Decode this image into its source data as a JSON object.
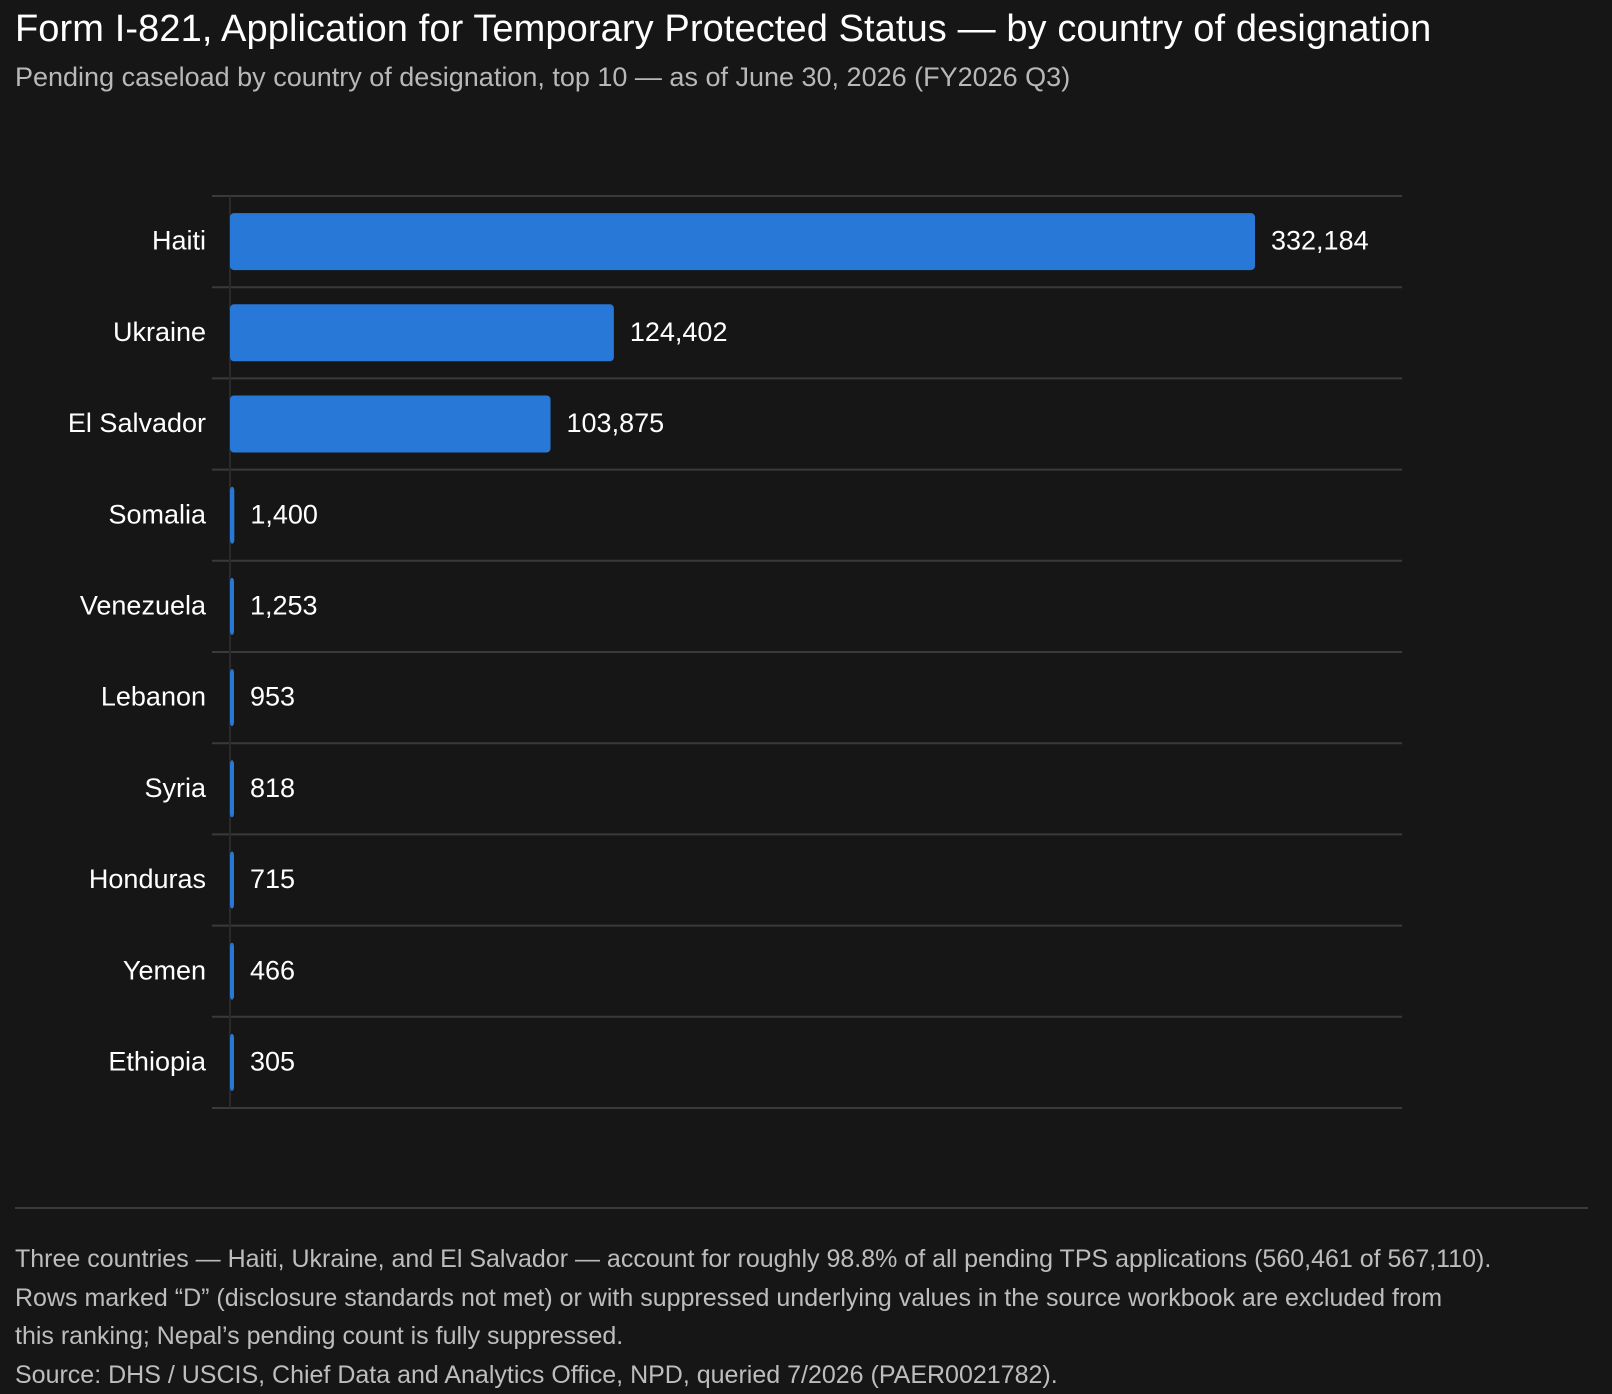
{
  "title": "Form I-821, Application for Temporary Protected Status — by country of designation",
  "subtitle": "Pending caseload by country of designation, top 10 — as of June 30, 2026 (FY2026 Q3)",
  "colors": {
    "background": "#161616",
    "bar": "#2878d8",
    "gridline": "#3a3a3a",
    "text": "#ffffff",
    "muted_text": "#b8b8b8"
  },
  "chart_data": {
    "type": "bar",
    "orientation": "horizontal",
    "categories": [
      "Haiti",
      "Ukraine",
      "El Salvador",
      "Somalia",
      "Venezuela",
      "Lebanon",
      "Syria",
      "Honduras",
      "Yemen",
      "Ethiopia"
    ],
    "values": [
      332184,
      124402,
      103875,
      1400,
      1253,
      953,
      818,
      715,
      466,
      305
    ],
    "value_labels": [
      "332,184",
      "124,402",
      "103,875",
      "1,400",
      "1,253",
      "953",
      "818",
      "715",
      "466",
      "305"
    ],
    "title": "Form I-821, Application for Temporary Protected Status — by country of designation",
    "xlabel": "",
    "ylabel": "",
    "grid": true,
    "legend": "none"
  },
  "notes": {
    "line1": "Three countries — Haiti, Ukraine, and El Salvador — account for roughly 98.8% of all pending TPS applications (560,461 of 567,110).",
    "line2": "Rows marked “D” (disclosure standards not met) or with suppressed underlying values in the source workbook are excluded from",
    "line3": "this ranking; Nepal’s pending count is fully suppressed.",
    "source": "Source: DHS / USCIS, Chief Data and Analytics Office, NPD, queried 7/2026 (PAER0021782)."
  }
}
